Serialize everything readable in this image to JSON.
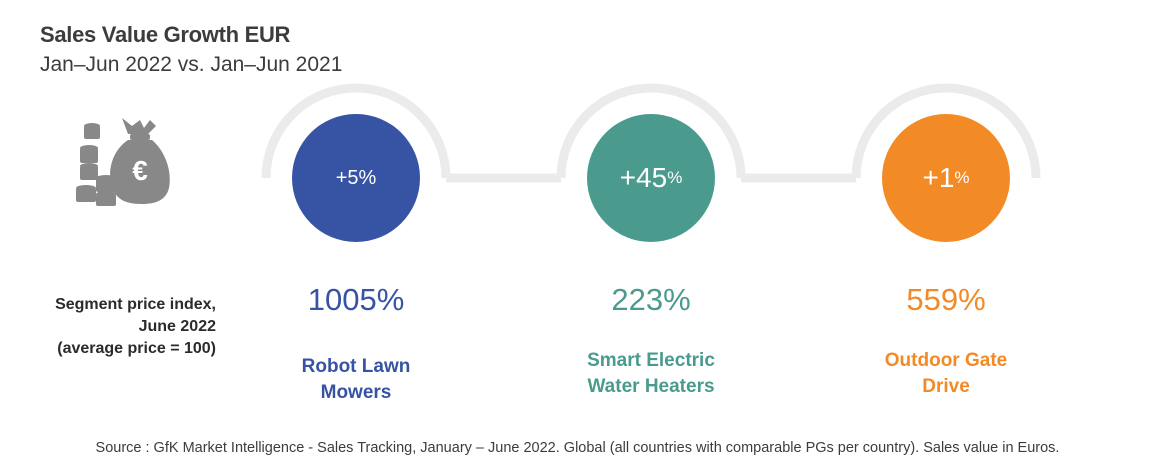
{
  "header": {
    "title": "Sales Value Growth EUR",
    "subtitle": "Jan–Jun 2022 vs. Jan–Jun 2021"
  },
  "icon": {
    "name": "money-bag-euro-icon",
    "symbol": "€",
    "color": "#888888"
  },
  "row_label": "Segment price index,\nJune 2022\n(average price = 100)",
  "source": "Source : GfK Market Intelligence - Sales Tracking, January – June 2022. Global (all countries with comparable PGs per country). Sales value in Euros.",
  "colors": {
    "arc": "#ebebeb",
    "robot": "#3753a4",
    "heater": "#4a9b8e",
    "gate": "#f28b26"
  },
  "chart_data": {
    "type": "table",
    "title": "Sales Value Growth EUR",
    "subtitle": "Jan–Jun 2022 vs. Jan–Jun 2021",
    "columns": [
      "Sales Value Growth EUR",
      "Segment price index, June 2022 (average price = 100)"
    ],
    "items": [
      {
        "name": "Robot Lawn Mowers",
        "growth_value": 5,
        "growth_label": "+5",
        "growth_unit": "%",
        "price_index_label": "1005%",
        "price_index": 1005,
        "color": "#3753a4"
      },
      {
        "name": "Smart Electric Water Heaters",
        "growth_value": 45,
        "growth_label": "+45",
        "growth_unit": "%",
        "price_index_label": "223%",
        "price_index": 223,
        "color": "#4a9b8e"
      },
      {
        "name": "Outdoor Gate Drive",
        "growth_value": 1,
        "growth_label": "+1",
        "growth_unit": "%",
        "price_index_label": "559%",
        "price_index": 559,
        "color": "#f28b26"
      }
    ]
  }
}
